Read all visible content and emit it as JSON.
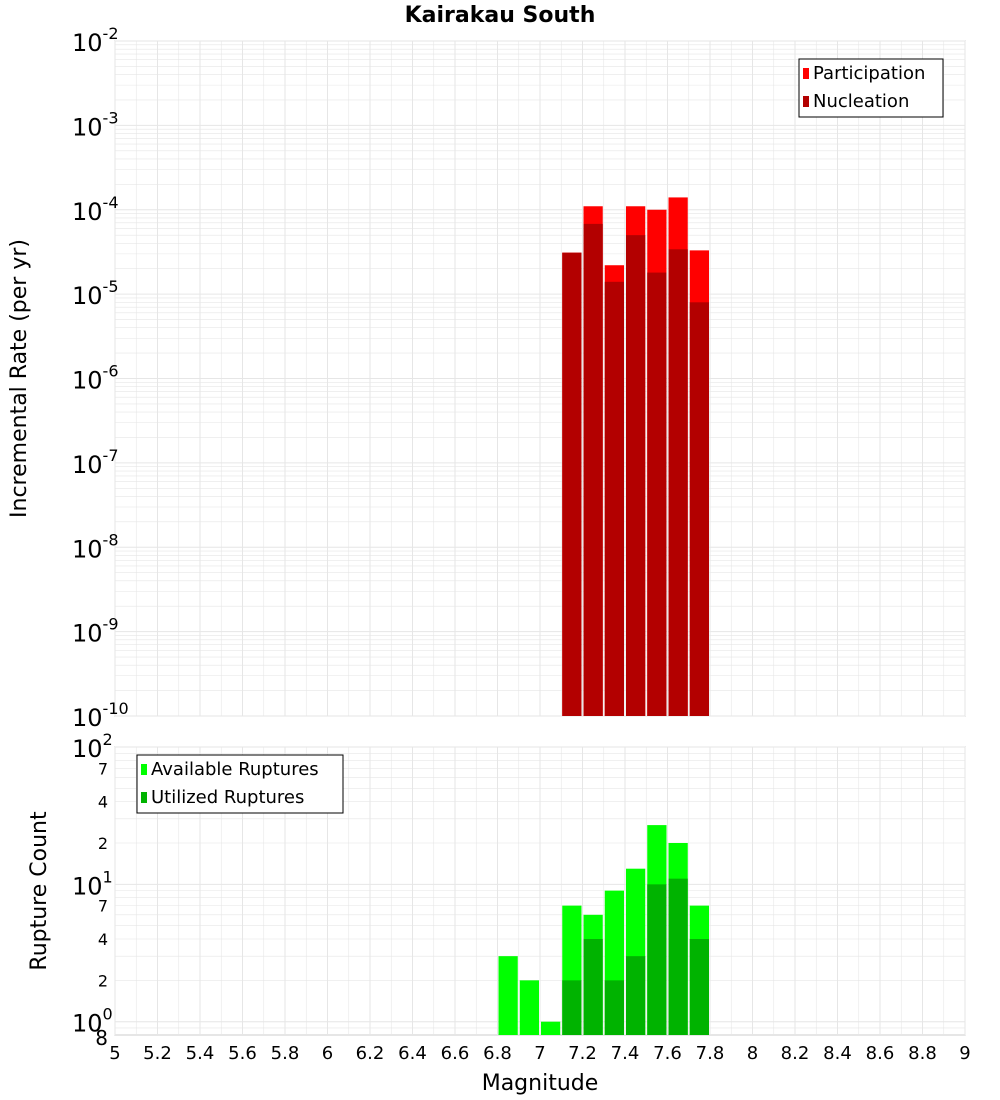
{
  "colors": {
    "participation": "#ff0000",
    "nucleation": "#b30000",
    "available": "#00ff00",
    "utilized": "#00b300",
    "grid": "#e6e6e6",
    "frame": "#b3b3b3"
  },
  "chart_data": {
    "type": "bar",
    "title": "Kairakau South",
    "xlabel": "Magnitude",
    "xlim": [
      5,
      9
    ],
    "xticks": [
      "5",
      "5.2",
      "5.4",
      "5.6",
      "5.8",
      "6",
      "6.2",
      "6.4",
      "6.6",
      "6.8",
      "7",
      "7.2",
      "7.4",
      "7.6",
      "7.8",
      "8",
      "8.2",
      "8.4",
      "8.6",
      "8.8",
      "9"
    ],
    "panels": [
      {
        "name": "rates",
        "ylabel": "Incremental Rate (per yr)",
        "yscale": "log",
        "ylim": [
          1e-10,
          0.01
        ],
        "ytick_labels": [
          {
            "base": "10",
            "exp": "-10"
          },
          {
            "base": "10",
            "exp": "-9"
          },
          {
            "base": "10",
            "exp": "-8"
          },
          {
            "base": "10",
            "exp": "-7"
          },
          {
            "base": "10",
            "exp": "-6"
          },
          {
            "base": "10",
            "exp": "-5"
          },
          {
            "base": "10",
            "exp": "-4"
          },
          {
            "base": "10",
            "exp": "-3"
          },
          {
            "base": "10",
            "exp": "-2"
          }
        ],
        "legend": [
          "Participation",
          "Nucleation"
        ],
        "x": [
          7.15,
          7.25,
          7.35,
          7.45,
          7.55,
          7.65,
          7.75
        ],
        "series": [
          {
            "name": "Participation",
            "values": [
              3.1e-05,
              0.00011,
              2.2e-05,
              0.00011,
              0.0001,
              0.00014,
              3.3e-05
            ]
          },
          {
            "name": "Nucleation",
            "values": [
              3.1e-05,
              6.8e-05,
              1.4e-05,
              5e-05,
              1.8e-05,
              3.4e-05,
              8e-06
            ]
          }
        ]
      },
      {
        "name": "counts",
        "ylabel": "Rupture Count",
        "yscale": "log",
        "ylim": [
          0.8,
          100
        ],
        "ytick_labels": [
          {
            "base": "10",
            "exp": "0"
          },
          {
            "base": "10",
            "exp": "1"
          },
          {
            "base": "10",
            "exp": "2"
          }
        ],
        "minor_tick_labels": [
          "8",
          "2",
          "4",
          "7",
          "2",
          "4",
          "7"
        ],
        "legend": [
          "Available Ruptures",
          "Utilized Ruptures"
        ],
        "x": [
          6.85,
          6.95,
          7.05,
          7.15,
          7.25,
          7.35,
          7.45,
          7.55,
          7.65,
          7.75
        ],
        "series": [
          {
            "name": "Available Ruptures",
            "values": [
              3,
              2,
              1,
              7,
              6,
              9,
              13,
              27,
              20,
              7
            ]
          },
          {
            "name": "Utilized Ruptures",
            "values": [
              0,
              0,
              0,
              2,
              4,
              2,
              3,
              10,
              11,
              4
            ]
          }
        ]
      }
    ]
  }
}
